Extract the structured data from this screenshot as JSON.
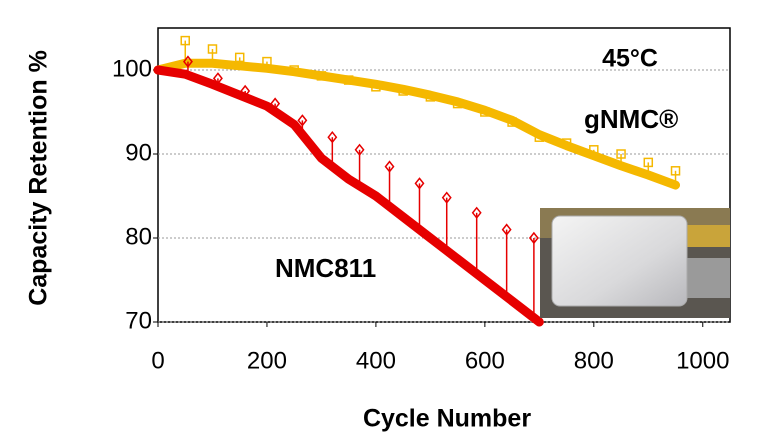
{
  "chart_data": {
    "type": "line",
    "x_label": "Cycle Number",
    "y_label": "Capacity Retention %",
    "annotation": "45°C",
    "annotation_color": "#c00000",
    "xlim": [
      0,
      1050
    ],
    "ylim": [
      70,
      105
    ],
    "xticks": [
      0,
      200,
      400,
      600,
      800,
      1000
    ],
    "yticks": [
      70,
      80,
      90,
      100
    ],
    "grid": true,
    "series": [
      {
        "name": "gNMC®",
        "color": "#f5b800",
        "x": [
          0,
          50,
          100,
          150,
          200,
          250,
          300,
          350,
          400,
          450,
          500,
          550,
          600,
          650,
          700,
          750,
          800,
          850,
          900,
          950
        ],
        "values": [
          100,
          100.8,
          100.8,
          100.5,
          100.2,
          99.8,
          99.3,
          98.8,
          98.3,
          97.7,
          97,
          96.2,
          95.2,
          94,
          92.3,
          91,
          89.8,
          88.6,
          87.5,
          86.3
        ],
        "marker_x": [
          50,
          100,
          150,
          200,
          250,
          300,
          350,
          400,
          450,
          500,
          550,
          600,
          650,
          700,
          750,
          800,
          850,
          900,
          950
        ],
        "marker_values": [
          103.5,
          102.5,
          101.5,
          101,
          100,
          99.3,
          98.8,
          98,
          97.5,
          96.8,
          96,
          95,
          93.8,
          92,
          91.3,
          90.5,
          90,
          89,
          88
        ]
      },
      {
        "name": "NMC811",
        "color": "#e60000",
        "x": [
          0,
          50,
          100,
          150,
          200,
          250,
          300,
          350,
          400,
          450,
          500,
          550,
          600,
          650,
          700
        ],
        "values": [
          100,
          99.5,
          98.3,
          97,
          95.7,
          93.5,
          89.5,
          87,
          85,
          82.5,
          80,
          77.5,
          75,
          72.5,
          70
        ],
        "marker_x": [
          55,
          110,
          160,
          215,
          265,
          320,
          370,
          425,
          480,
          530,
          585,
          640,
          690
        ],
        "marker_values": [
          101,
          99,
          97.5,
          96,
          94,
          92,
          90.5,
          88.5,
          86.5,
          84.8,
          83,
          81,
          80
        ]
      }
    ]
  }
}
